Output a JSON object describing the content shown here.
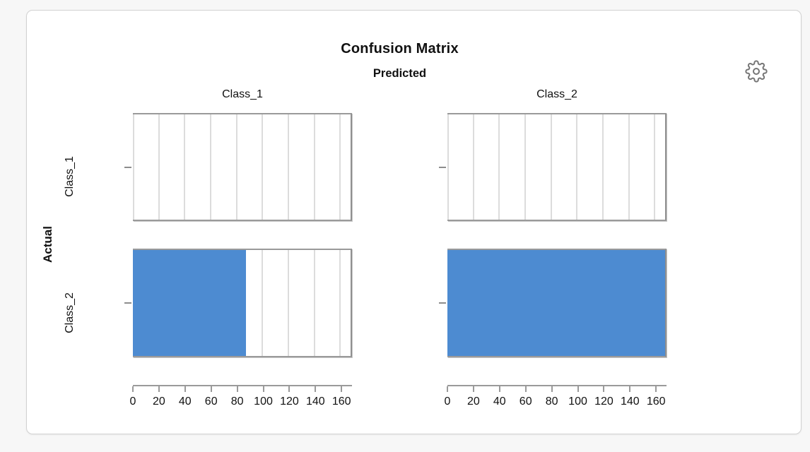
{
  "page": {
    "background": "#f7f7f7"
  },
  "card": {
    "background": "#ffffff",
    "border_color": "#d2d2d2"
  },
  "controls": {
    "settings_icon": "gear-icon"
  },
  "chart_data": {
    "type": "bar",
    "orientation": "horizontal",
    "title": "Confusion Matrix",
    "facet_col_title": "Predicted",
    "facet_row_title": "Actual",
    "col_labels": [
      "Class_1",
      "Class_2"
    ],
    "row_labels": [
      "Class_1",
      "Class_2"
    ],
    "x_ticks": [
      0,
      20,
      40,
      60,
      80,
      100,
      120,
      140,
      160
    ],
    "xlim": [
      0,
      168
    ],
    "grid": true,
    "legend": "none",
    "bar_color": "#4d8bd1",
    "cells": [
      {
        "actual": "Class_1",
        "predicted": "Class_1",
        "value": 0
      },
      {
        "actual": "Class_1",
        "predicted": "Class_2",
        "value": 0
      },
      {
        "actual": "Class_2",
        "predicted": "Class_1",
        "value": 87
      },
      {
        "actual": "Class_2",
        "predicted": "Class_2",
        "value": 168
      }
    ]
  }
}
